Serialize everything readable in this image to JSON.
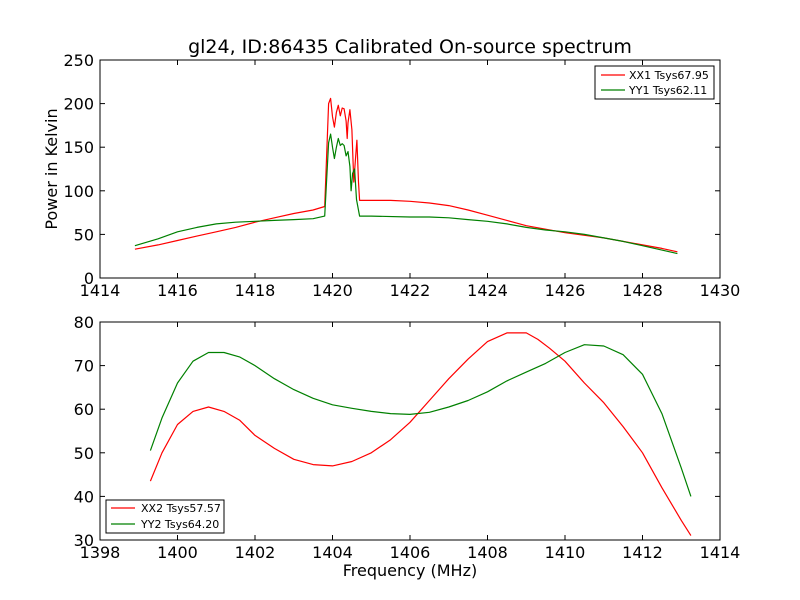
{
  "chart_data": [
    {
      "type": "line",
      "title": "gl24, ID:86435 Calibrated On-source spectrum",
      "xlabel": "",
      "ylabel": "Power in Kelvin",
      "xlim": [
        1414,
        1430
      ],
      "ylim": [
        0,
        250
      ],
      "xticks": [
        "1414",
        "1416",
        "1418",
        "1420",
        "1422",
        "1424",
        "1426",
        "1428",
        "1430"
      ],
      "yticks": [
        "0",
        "50",
        "100",
        "150",
        "200",
        "250"
      ],
      "legend_position": "top-right",
      "series": [
        {
          "name": "XX1 Tsys67.95",
          "color": "#ff0000",
          "points": [
            [
              1414.9,
              33
            ],
            [
              1415.5,
              38
            ],
            [
              1416,
              43
            ],
            [
              1416.5,
              48
            ],
            [
              1417,
              53
            ],
            [
              1417.5,
              58
            ],
            [
              1418,
              64
            ],
            [
              1418.5,
              69
            ],
            [
              1419,
              74
            ],
            [
              1419.5,
              78
            ],
            [
              1419.8,
              82
            ],
            [
              1419.9,
              200
            ],
            [
              1419.95,
              206
            ],
            [
              1420.0,
              185
            ],
            [
              1420.05,
              173
            ],
            [
              1420.1,
              190
            ],
            [
              1420.15,
              198
            ],
            [
              1420.2,
              186
            ],
            [
              1420.25,
              195
            ],
            [
              1420.3,
              194
            ],
            [
              1420.35,
              180
            ],
            [
              1420.38,
              160
            ],
            [
              1420.4,
              178
            ],
            [
              1420.45,
              193
            ],
            [
              1420.5,
              170
            ],
            [
              1420.55,
              110
            ],
            [
              1420.6,
              140
            ],
            [
              1420.63,
              158
            ],
            [
              1420.67,
              110
            ],
            [
              1420.7,
              89
            ],
            [
              1421,
              89
            ],
            [
              1421.5,
              89
            ],
            [
              1422,
              88
            ],
            [
              1422.5,
              86
            ],
            [
              1423,
              83
            ],
            [
              1423.5,
              78
            ],
            [
              1424,
              72
            ],
            [
              1424.5,
              66
            ],
            [
              1425,
              60
            ],
            [
              1425.5,
              56
            ],
            [
              1426,
              52
            ],
            [
              1426.5,
              49
            ],
            [
              1427,
              46
            ],
            [
              1427.5,
              42
            ],
            [
              1428,
              38
            ],
            [
              1428.5,
              34
            ],
            [
              1428.9,
              30
            ]
          ]
        },
        {
          "name": "YY1 Tsys62.11",
          "color": "#008000",
          "points": [
            [
              1414.9,
              37
            ],
            [
              1415.5,
              45
            ],
            [
              1416,
              53
            ],
            [
              1416.5,
              58
            ],
            [
              1417,
              62
            ],
            [
              1417.5,
              64
            ],
            [
              1418,
              65
            ],
            [
              1418.5,
              66
            ],
            [
              1419,
              67
            ],
            [
              1419.5,
              68
            ],
            [
              1419.8,
              71
            ],
            [
              1419.9,
              155
            ],
            [
              1419.95,
              165
            ],
            [
              1420.0,
              150
            ],
            [
              1420.05,
              137
            ],
            [
              1420.1,
              150
            ],
            [
              1420.15,
              160
            ],
            [
              1420.2,
              152
            ],
            [
              1420.25,
              154
            ],
            [
              1420.3,
              152
            ],
            [
              1420.35,
              140
            ],
            [
              1420.4,
              145
            ],
            [
              1420.45,
              128
            ],
            [
              1420.48,
              100
            ],
            [
              1420.52,
              120
            ],
            [
              1420.57,
              125
            ],
            [
              1420.62,
              90
            ],
            [
              1420.7,
              71
            ],
            [
              1421,
              71
            ],
            [
              1422,
              70
            ],
            [
              1422.5,
              70
            ],
            [
              1423,
              69
            ],
            [
              1423.5,
              67
            ],
            [
              1424,
              65
            ],
            [
              1424.5,
              62
            ],
            [
              1425,
              58
            ],
            [
              1425.5,
              55
            ],
            [
              1426,
              53
            ],
            [
              1426.5,
              50
            ],
            [
              1427,
              46
            ],
            [
              1427.5,
              42
            ],
            [
              1428,
              37
            ],
            [
              1428.5,
              32
            ],
            [
              1428.9,
              28
            ]
          ]
        }
      ]
    },
    {
      "type": "line",
      "title": "",
      "xlabel": "Frequency (MHz)",
      "ylabel": "",
      "xlim": [
        1398,
        1414
      ],
      "ylim": [
        30,
        80
      ],
      "xticks": [
        "1398",
        "1400",
        "1402",
        "1404",
        "1406",
        "1408",
        "1410",
        "1412",
        "1414"
      ],
      "yticks": [
        "30",
        "40",
        "50",
        "60",
        "70",
        "80"
      ],
      "legend_position": "bottom-left",
      "series": [
        {
          "name": "XX2 Tsys57.57",
          "color": "#ff0000",
          "points": [
            [
              1399.3,
              43.5
            ],
            [
              1399.6,
              50
            ],
            [
              1400,
              56.5
            ],
            [
              1400.4,
              59.5
            ],
            [
              1400.8,
              60.5
            ],
            [
              1401.2,
              59.5
            ],
            [
              1401.6,
              57.5
            ],
            [
              1402,
              54
            ],
            [
              1402.5,
              51
            ],
            [
              1403,
              48.5
            ],
            [
              1403.5,
              47.3
            ],
            [
              1404,
              47
            ],
            [
              1404.5,
              48
            ],
            [
              1405,
              50
            ],
            [
              1405.5,
              53
            ],
            [
              1406,
              57
            ],
            [
              1406.5,
              62
            ],
            [
              1407,
              67
            ],
            [
              1407.5,
              71.5
            ],
            [
              1408,
              75.5
            ],
            [
              1408.5,
              77.5
            ],
            [
              1409,
              77.5
            ],
            [
              1409.3,
              76
            ],
            [
              1409.6,
              74
            ],
            [
              1410,
              71
            ],
            [
              1410.5,
              66
            ],
            [
              1411,
              61.5
            ],
            [
              1411.5,
              56
            ],
            [
              1412,
              50
            ],
            [
              1412.5,
              42
            ],
            [
              1413,
              34.5
            ],
            [
              1413.25,
              31
            ]
          ]
        },
        {
          "name": "YY2 Tsys64.20",
          "color": "#008000",
          "points": [
            [
              1399.3,
              50.5
            ],
            [
              1399.6,
              58
            ],
            [
              1400,
              66
            ],
            [
              1400.4,
              71
            ],
            [
              1400.8,
              73
            ],
            [
              1401.2,
              73
            ],
            [
              1401.6,
              72
            ],
            [
              1402,
              70
            ],
            [
              1402.5,
              67
            ],
            [
              1403,
              64.5
            ],
            [
              1403.5,
              62.5
            ],
            [
              1404,
              61
            ],
            [
              1404.5,
              60.2
            ],
            [
              1405,
              59.5
            ],
            [
              1405.5,
              59
            ],
            [
              1406,
              58.8
            ],
            [
              1406.5,
              59.3
            ],
            [
              1407,
              60.5
            ],
            [
              1407.5,
              62
            ],
            [
              1408,
              64
            ],
            [
              1408.5,
              66.5
            ],
            [
              1409,
              68.5
            ],
            [
              1409.5,
              70.5
            ],
            [
              1410,
              73
            ],
            [
              1410.5,
              74.8
            ],
            [
              1411,
              74.5
            ],
            [
              1411.5,
              72.5
            ],
            [
              1412,
              68
            ],
            [
              1412.5,
              59
            ],
            [
              1413,
              46.5
            ],
            [
              1413.25,
              40
            ]
          ]
        }
      ]
    }
  ]
}
